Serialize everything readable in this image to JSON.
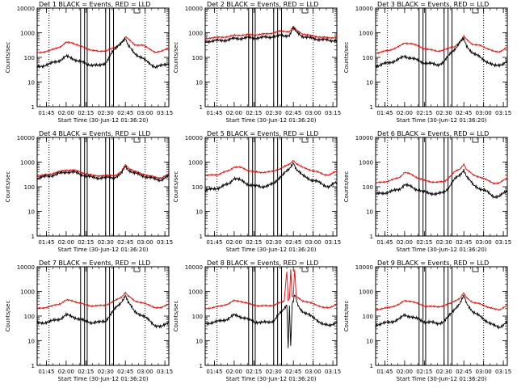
{
  "page": {
    "panels_grid": "3x3"
  },
  "chart_data": [
    {
      "type": "line",
      "title": "Det  1 BLACK = Events, RED = LLD",
      "xlabel": "Start Time (30-Jun-12 01:36:20)",
      "ylabel": "Counts/sec",
      "yscale": "log",
      "ylim": [
        1,
        10000
      ],
      "xlim": [
        "01:38",
        "03:18"
      ],
      "x_ticks": [
        "01:45",
        "02:00",
        "02:15",
        "02:30",
        "02:45",
        "03:00",
        "03:15"
      ],
      "y_ticks": [
        "1",
        "10",
        "100",
        "1000",
        "10000"
      ],
      "vlines": [
        "01:47",
        "02:11",
        "02:14",
        "02:16",
        "02:30",
        "02:33",
        "02:36",
        "03:00"
      ],
      "x": [
        "01:38",
        "01:48",
        "01:56",
        "02:00",
        "02:05",
        "02:10",
        "02:15",
        "02:20",
        "02:25",
        "02:30",
        "02:35",
        "02:38",
        "02:42",
        "02:45",
        "02:47",
        "02:52",
        "02:58",
        "03:03",
        "03:08",
        "03:12",
        "03:18"
      ],
      "series": [
        {
          "color": "#ff0000",
          "values": [
            150,
            190,
            280,
            400,
            390,
            300,
            230,
            200,
            170,
            190,
            230,
            260,
            420,
            680,
            560,
            330,
            310,
            230,
            160,
            170,
            260
          ]
        },
        {
          "color": "#000000",
          "values": [
            40,
            55,
            80,
            110,
            90,
            70,
            55,
            50,
            45,
            60,
            160,
            240,
            420,
            580,
            300,
            150,
            90,
            60,
            40,
            45,
            60
          ]
        }
      ]
    },
    {
      "type": "line",
      "title": "Det  2 BLACK = Events, RED = LLD",
      "xlabel": "Start Time (30-Jun-12 01:36:20)",
      "ylabel": "Counts/sec",
      "yscale": "log",
      "ylim": [
        1,
        10000
      ],
      "xlim": [
        "01:38",
        "03:18"
      ],
      "x_ticks": [
        "01:45",
        "02:00",
        "02:15",
        "02:30",
        "02:45",
        "03:00",
        "03:15"
      ],
      "y_ticks": [
        "1",
        "10",
        "100",
        "1000",
        "10000"
      ],
      "vlines": [
        "01:47",
        "02:11",
        "02:14",
        "02:16",
        "02:30",
        "02:33",
        "02:36",
        "03:00"
      ],
      "x": [
        "01:38",
        "01:48",
        "01:56",
        "02:00",
        "02:05",
        "02:10",
        "02:15",
        "02:20",
        "02:25",
        "02:30",
        "02:35",
        "02:38",
        "02:42",
        "02:45",
        "02:47",
        "02:52",
        "02:58",
        "03:03",
        "03:08",
        "03:12",
        "03:18"
      ],
      "series": [
        {
          "color": "#ff0000",
          "values": [
            600,
            650,
            700,
            780,
            800,
            820,
            830,
            860,
            900,
            1000,
            1150,
            1150,
            1100,
            1800,
            1300,
            900,
            760,
            700,
            650,
            620,
            650
          ]
        },
        {
          "color": "#000000",
          "values": [
            450,
            480,
            520,
            580,
            600,
            620,
            620,
            630,
            660,
            700,
            750,
            760,
            800,
            1500,
            1100,
            720,
            600,
            560,
            520,
            480,
            500
          ]
        }
      ]
    },
    {
      "type": "line",
      "title": "Det  3 BLACK = Events, RED = LLD",
      "xlabel": "Start Time (30-Jun-12 01:36:20)",
      "ylabel": "Counts/sec",
      "yscale": "log",
      "ylim": [
        1,
        10000
      ],
      "xlim": [
        "01:38",
        "03:18"
      ],
      "x_ticks": [
        "01:45",
        "02:00",
        "02:15",
        "02:30",
        "02:45",
        "03:00",
        "03:15"
      ],
      "y_ticks": [
        "1",
        "10",
        "100",
        "1000",
        "10000"
      ],
      "vlines": [
        "01:47",
        "02:11",
        "02:14",
        "02:16",
        "02:30",
        "02:33",
        "02:36",
        "03:00"
      ],
      "x": [
        "01:38",
        "01:48",
        "01:56",
        "02:00",
        "02:05",
        "02:10",
        "02:15",
        "02:20",
        "02:25",
        "02:30",
        "02:35",
        "02:38",
        "02:42",
        "02:45",
        "02:47",
        "02:52",
        "02:58",
        "03:03",
        "03:08",
        "03:12",
        "03:18"
      ],
      "series": [
        {
          "color": "#ff0000",
          "values": [
            150,
            190,
            280,
            380,
            370,
            290,
            230,
            200,
            180,
            200,
            250,
            280,
            430,
            700,
            550,
            330,
            300,
            230,
            170,
            170,
            260
          ]
        },
        {
          "color": "#000000",
          "values": [
            45,
            60,
            85,
            110,
            95,
            75,
            60,
            55,
            50,
            65,
            150,
            220,
            400,
            560,
            290,
            150,
            95,
            65,
            45,
            50,
            65
          ]
        }
      ]
    },
    {
      "type": "line",
      "title": "Det  4 BLACK = Events, RED = LLD",
      "xlabel": "Start Time (30-Jun-12 01:36:20)",
      "ylabel": "Counts/sec",
      "yscale": "log",
      "ylim": [
        1,
        10000
      ],
      "xlim": [
        "01:38",
        "03:18"
      ],
      "x_ticks": [
        "01:45",
        "02:00",
        "02:15",
        "02:30",
        "02:45",
        "03:00",
        "03:15"
      ],
      "y_ticks": [
        "1",
        "10",
        "100",
        "1000",
        "10000"
      ],
      "vlines": [
        "01:47",
        "02:11",
        "02:14",
        "02:16",
        "02:30",
        "02:33",
        "02:36",
        "03:00"
      ],
      "x": [
        "01:38",
        "01:48",
        "01:56",
        "02:00",
        "02:05",
        "02:10",
        "02:15",
        "02:20",
        "02:25",
        "02:30",
        "02:35",
        "02:38",
        "02:42",
        "02:45",
        "02:47",
        "02:52",
        "02:58",
        "03:03",
        "03:08",
        "03:12",
        "03:18"
      ],
      "series": [
        {
          "color": "#ff0000",
          "values": [
            260,
            330,
            420,
            480,
            470,
            420,
            330,
            290,
            280,
            280,
            290,
            300,
            400,
            800,
            600,
            420,
            330,
            280,
            240,
            230,
            320
          ]
        },
        {
          "color": "#000000",
          "values": [
            220,
            280,
            350,
            400,
            390,
            340,
            270,
            240,
            230,
            230,
            240,
            250,
            330,
            680,
            500,
            350,
            280,
            240,
            200,
            190,
            270
          ]
        }
      ]
    },
    {
      "type": "line",
      "title": "Det  5 BLACK = Events, RED = LLD",
      "xlabel": "Start Time (30-Jun-12 01:36:20)",
      "ylabel": "Counts/sec",
      "yscale": "log",
      "ylim": [
        1,
        10000
      ],
      "xlim": [
        "01:38",
        "03:18"
      ],
      "x_ticks": [
        "01:45",
        "02:00",
        "02:15",
        "02:30",
        "02:45",
        "03:00",
        "03:15"
      ],
      "y_ticks": [
        "1",
        "10",
        "100",
        "1000",
        "10000"
      ],
      "vlines": [
        "01:47",
        "02:11",
        "02:14",
        "02:16",
        "02:30",
        "02:33",
        "02:36",
        "03:00"
      ],
      "x": [
        "01:38",
        "01:48",
        "01:56",
        "02:00",
        "02:05",
        "02:10",
        "02:15",
        "02:20",
        "02:25",
        "02:30",
        "02:35",
        "02:38",
        "02:42",
        "02:45",
        "02:47",
        "02:52",
        "02:58",
        "03:03",
        "03:08",
        "03:12",
        "03:18"
      ],
      "series": [
        {
          "color": "#ff0000",
          "values": [
            280,
            320,
            450,
            640,
            600,
            480,
            400,
            380,
            400,
            420,
            550,
            650,
            800,
            1200,
            900,
            600,
            480,
            400,
            320,
            300,
            420
          ]
        },
        {
          "color": "#000000",
          "values": [
            70,
            90,
            130,
            230,
            180,
            130,
            110,
            100,
            110,
            130,
            260,
            350,
            500,
            1000,
            550,
            280,
            200,
            160,
            120,
            100,
            150
          ]
        }
      ]
    },
    {
      "type": "line",
      "title": "Det  6 BLACK = Events, RED = LLD",
      "xlabel": "Start Time (30-Jun-12 01:36:20)",
      "ylabel": "Counts/sec",
      "yscale": "log",
      "ylim": [
        1,
        10000
      ],
      "xlim": [
        "01:38",
        "03:18"
      ],
      "x_ticks": [
        "01:45",
        "02:00",
        "02:15",
        "02:30",
        "02:45",
        "03:00",
        "03:15"
      ],
      "y_ticks": [
        "1",
        "10",
        "100",
        "1000",
        "10000"
      ],
      "vlines": [
        "01:47",
        "02:11",
        "02:14",
        "02:16",
        "02:30",
        "02:33",
        "02:36",
        "03:00"
      ],
      "x": [
        "01:38",
        "01:48",
        "01:56",
        "02:00",
        "02:05",
        "02:10",
        "02:15",
        "02:20",
        "02:25",
        "02:30",
        "02:35",
        "02:38",
        "02:42",
        "02:45",
        "02:47",
        "02:52",
        "02:58",
        "03:03",
        "03:08",
        "03:12",
        "03:18"
      ],
      "series": [
        {
          "color": "#ff0000",
          "values": [
            140,
            170,
            240,
            380,
            320,
            230,
            180,
            160,
            150,
            160,
            280,
            400,
            520,
            850,
            500,
            300,
            240,
            180,
            140,
            140,
            230
          ]
        },
        {
          "color": "#000000",
          "values": [
            50,
            60,
            80,
            120,
            100,
            75,
            60,
            55,
            50,
            60,
            120,
            200,
            300,
            500,
            260,
            120,
            80,
            60,
            40,
            40,
            70
          ]
        }
      ]
    },
    {
      "type": "line",
      "title": "Det  7 BLACK = Events, RED = LLD",
      "xlabel": "Start Time (30-Jun-12 01:36:20)",
      "ylabel": "Counts/sec",
      "yscale": "log",
      "ylim": [
        1,
        10000
      ],
      "xlim": [
        "01:38",
        "03:18"
      ],
      "x_ticks": [
        "01:45",
        "02:00",
        "02:15",
        "02:30",
        "02:45",
        "03:00",
        "03:15"
      ],
      "y_ticks": [
        "1",
        "10",
        "100",
        "1000",
        "10000"
      ],
      "vlines": [
        "01:47",
        "02:11",
        "02:14",
        "02:16",
        "02:30",
        "02:33",
        "02:36",
        "03:00"
      ],
      "x": [
        "01:38",
        "01:48",
        "01:56",
        "02:00",
        "02:05",
        "02:10",
        "02:15",
        "02:20",
        "02:25",
        "02:30",
        "02:35",
        "02:38",
        "02:42",
        "02:45",
        "02:47",
        "02:52",
        "02:58",
        "03:03",
        "03:08",
        "03:12",
        "03:18"
      ],
      "series": [
        {
          "color": "#ff0000",
          "values": [
            200,
            240,
            330,
            440,
            420,
            340,
            280,
            260,
            260,
            280,
            360,
            450,
            600,
            900,
            650,
            420,
            340,
            280,
            220,
            210,
            320
          ]
        },
        {
          "color": "#000000",
          "values": [
            50,
            60,
            80,
            110,
            95,
            75,
            60,
            55,
            55,
            65,
            140,
            220,
            380,
            700,
            360,
            160,
            100,
            70,
            40,
            35,
            60
          ]
        }
      ]
    },
    {
      "type": "line",
      "title": "Det  8 BLACK = Events, RED = LLD",
      "xlabel": "Start Time (30-Jun-12 01:36:20)",
      "ylabel": "Counts/sec",
      "yscale": "log",
      "ylim": [
        1,
        10000
      ],
      "xlim": [
        "01:38",
        "03:18"
      ],
      "x_ticks": [
        "01:45",
        "02:00",
        "02:15",
        "02:30",
        "02:45",
        "03:00",
        "03:15"
      ],
      "y_ticks": [
        "1",
        "10",
        "100",
        "1000",
        "10000"
      ],
      "vlines": [
        "01:47",
        "02:11",
        "02:14",
        "02:16",
        "02:30",
        "02:33",
        "02:36",
        "03:00"
      ],
      "x": [
        "01:38",
        "01:48",
        "01:56",
        "02:00",
        "02:05",
        "02:10",
        "02:15",
        "02:20",
        "02:25",
        "02:30",
        "02:35",
        "02:38",
        "02:40",
        "02:41",
        "02:42",
        "02:43",
        "02:44",
        "02:45",
        "02:46",
        "02:47",
        "02:48",
        "02:50",
        "02:52",
        "02:58",
        "03:03",
        "03:08",
        "03:12",
        "03:18"
      ],
      "series": [
        {
          "color": "#ff0000",
          "values": [
            200,
            240,
            320,
            420,
            400,
            330,
            280,
            260,
            260,
            280,
            350,
            400,
            7000,
            450,
            500,
            7500,
            600,
            650,
            8000,
            700,
            550,
            500,
            420,
            340,
            280,
            220,
            210,
            320
          ]
        },
        {
          "color": "#000000",
          "values": [
            50,
            60,
            80,
            110,
            95,
            75,
            60,
            55,
            55,
            65,
            130,
            200,
            300,
            5,
            250,
            6,
            300,
            400,
            700,
            500,
            300,
            200,
            160,
            100,
            70,
            45,
            40,
            60
          ]
        }
      ]
    },
    {
      "type": "line",
      "title": "Det  9 BLACK = Events, RED = LLD",
      "xlabel": "Start Time (30-Jun-12 01:36:20)",
      "ylabel": "Counts/sec",
      "yscale": "log",
      "ylim": [
        1,
        10000
      ],
      "xlim": [
        "01:38",
        "03:18"
      ],
      "x_ticks": [
        "01:45",
        "02:00",
        "02:15",
        "02:30",
        "02:45",
        "03:00",
        "03:15"
      ],
      "y_ticks": [
        "1",
        "10",
        "100",
        "1000",
        "10000"
      ],
      "vlines": [
        "01:47",
        "02:11",
        "02:14",
        "02:16",
        "02:30",
        "02:33",
        "02:36",
        "03:00"
      ],
      "x": [
        "01:38",
        "01:48",
        "01:56",
        "02:00",
        "02:05",
        "02:10",
        "02:15",
        "02:20",
        "02:25",
        "02:30",
        "02:35",
        "02:38",
        "02:42",
        "02:45",
        "02:47",
        "02:52",
        "02:58",
        "03:03",
        "03:08",
        "03:12",
        "03:18"
      ],
      "series": [
        {
          "color": "#ff0000",
          "values": [
            180,
            220,
            300,
            420,
            400,
            320,
            260,
            240,
            240,
            260,
            330,
            420,
            520,
            850,
            560,
            360,
            300,
            240,
            190,
            180,
            280
          ]
        },
        {
          "color": "#000000",
          "values": [
            45,
            55,
            75,
            110,
            95,
            75,
            60,
            55,
            50,
            60,
            120,
            200,
            320,
            650,
            330,
            150,
            90,
            60,
            40,
            35,
            60
          ]
        }
      ]
    }
  ]
}
